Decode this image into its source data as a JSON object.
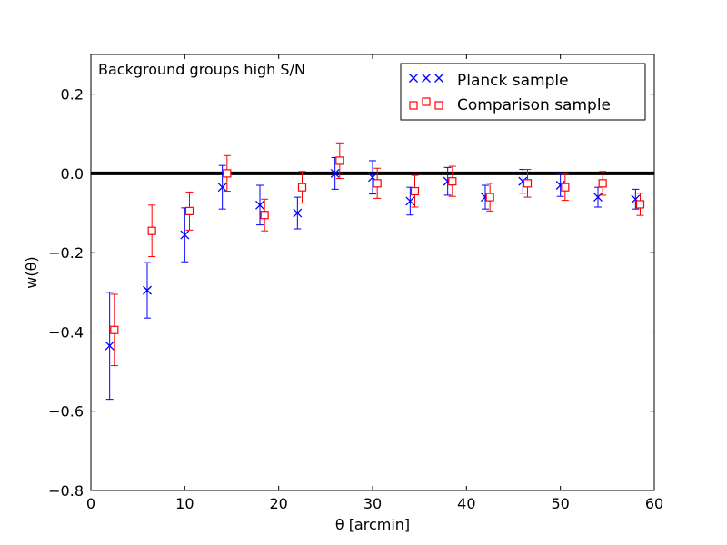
{
  "chart_data": {
    "type": "scatter",
    "title": "",
    "annotation": "Background groups high S/N",
    "xlabel": "θ [arcmin]",
    "ylabel": "w(θ)",
    "xlim": [
      0,
      60
    ],
    "ylim": [
      -0.8,
      0.3
    ],
    "xticks": [
      0,
      10,
      20,
      30,
      40,
      50,
      60
    ],
    "yticks": [
      -0.8,
      -0.6,
      -0.4,
      -0.2,
      0.0,
      0.2
    ],
    "xtick_labels": [
      "0",
      "10",
      "20",
      "30",
      "40",
      "50",
      "60"
    ],
    "ytick_labels": [
      "−0.8",
      "−0.6",
      "−0.4",
      "−0.2",
      "0.0",
      "0.2"
    ],
    "reference_line": 0.0,
    "legend_position": "top-right",
    "series": [
      {
        "name": "Planck sample",
        "marker": "x",
        "color": "#0000ff",
        "x": [
          2,
          6,
          10,
          14,
          18,
          22,
          26,
          30,
          34,
          38,
          42,
          46,
          50,
          54,
          58
        ],
        "y": [
          -0.435,
          -0.295,
          -0.155,
          -0.035,
          -0.08,
          -0.1,
          0.0,
          -0.01,
          -0.07,
          -0.02,
          -0.06,
          -0.02,
          -0.03,
          -0.06,
          -0.065
        ],
        "err": [
          0.135,
          0.07,
          0.068,
          0.055,
          0.05,
          0.04,
          0.04,
          0.042,
          0.035,
          0.035,
          0.03,
          0.03,
          0.028,
          0.025,
          0.025
        ]
      },
      {
        "name": "Comparison sample",
        "marker": "square",
        "color": "#ff0000",
        "x": [
          2.5,
          6.5,
          10.5,
          14.5,
          18.5,
          22.5,
          26.5,
          30.5,
          34.5,
          38.5,
          42.5,
          46.5,
          50.5,
          54.5,
          58.5
        ],
        "y": [
          -0.395,
          -0.145,
          -0.095,
          0.0,
          -0.105,
          -0.035,
          0.032,
          -0.025,
          -0.045,
          -0.02,
          -0.06,
          -0.025,
          -0.035,
          -0.025,
          -0.078
        ],
        "err": [
          0.09,
          0.065,
          0.048,
          0.045,
          0.04,
          0.04,
          0.045,
          0.038,
          0.04,
          0.038,
          0.035,
          0.035,
          0.033,
          0.03,
          0.028
        ]
      }
    ]
  }
}
